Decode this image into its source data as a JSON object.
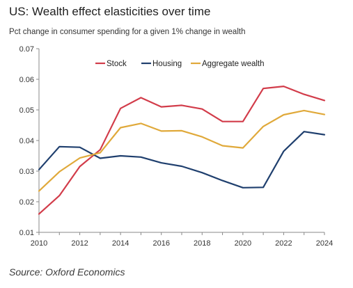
{
  "title": "US: Wealth effect  elasticities over time",
  "subtitle": "Pct change in consumer spending for a given 1% change in wealth",
  "source": "Source: Oxford Economics",
  "chart_data": {
    "type": "line",
    "x": [
      2010,
      2011,
      2012,
      2013,
      2014,
      2015,
      2016,
      2017,
      2018,
      2019,
      2020,
      2021,
      2022,
      2023,
      2024
    ],
    "xticks": [
      "2010",
      "2012",
      "2014",
      "2016",
      "2018",
      "2020",
      "2022",
      "2024"
    ],
    "yticks": [
      "0.01",
      "0.02",
      "0.03",
      "0.04",
      "0.05",
      "0.06",
      "0.07"
    ],
    "xlim": [
      2010,
      2024
    ],
    "ylim": [
      0.01,
      0.07
    ],
    "grid": false,
    "legend_position": "top-center",
    "series": [
      {
        "name": "Stock",
        "color": "#d23c4a",
        "values": [
          0.016,
          0.022,
          0.0315,
          0.037,
          0.0505,
          0.054,
          0.051,
          0.0515,
          0.0503,
          0.0462,
          0.0462,
          0.057,
          0.0577,
          0.0551,
          0.0531
        ]
      },
      {
        "name": "Housing",
        "color": "#1f3f6e",
        "values": [
          0.0305,
          0.038,
          0.0378,
          0.0342,
          0.035,
          0.0346,
          0.0327,
          0.0316,
          0.0295,
          0.0269,
          0.0246,
          0.0247,
          0.0365,
          0.0429,
          0.0419
        ]
      },
      {
        "name": "Aggregate wealth",
        "color": "#e0a93a",
        "values": [
          0.0235,
          0.0298,
          0.0343,
          0.036,
          0.0442,
          0.0456,
          0.0431,
          0.0432,
          0.0412,
          0.0383,
          0.0376,
          0.0446,
          0.0484,
          0.0498,
          0.0485
        ]
      }
    ]
  }
}
